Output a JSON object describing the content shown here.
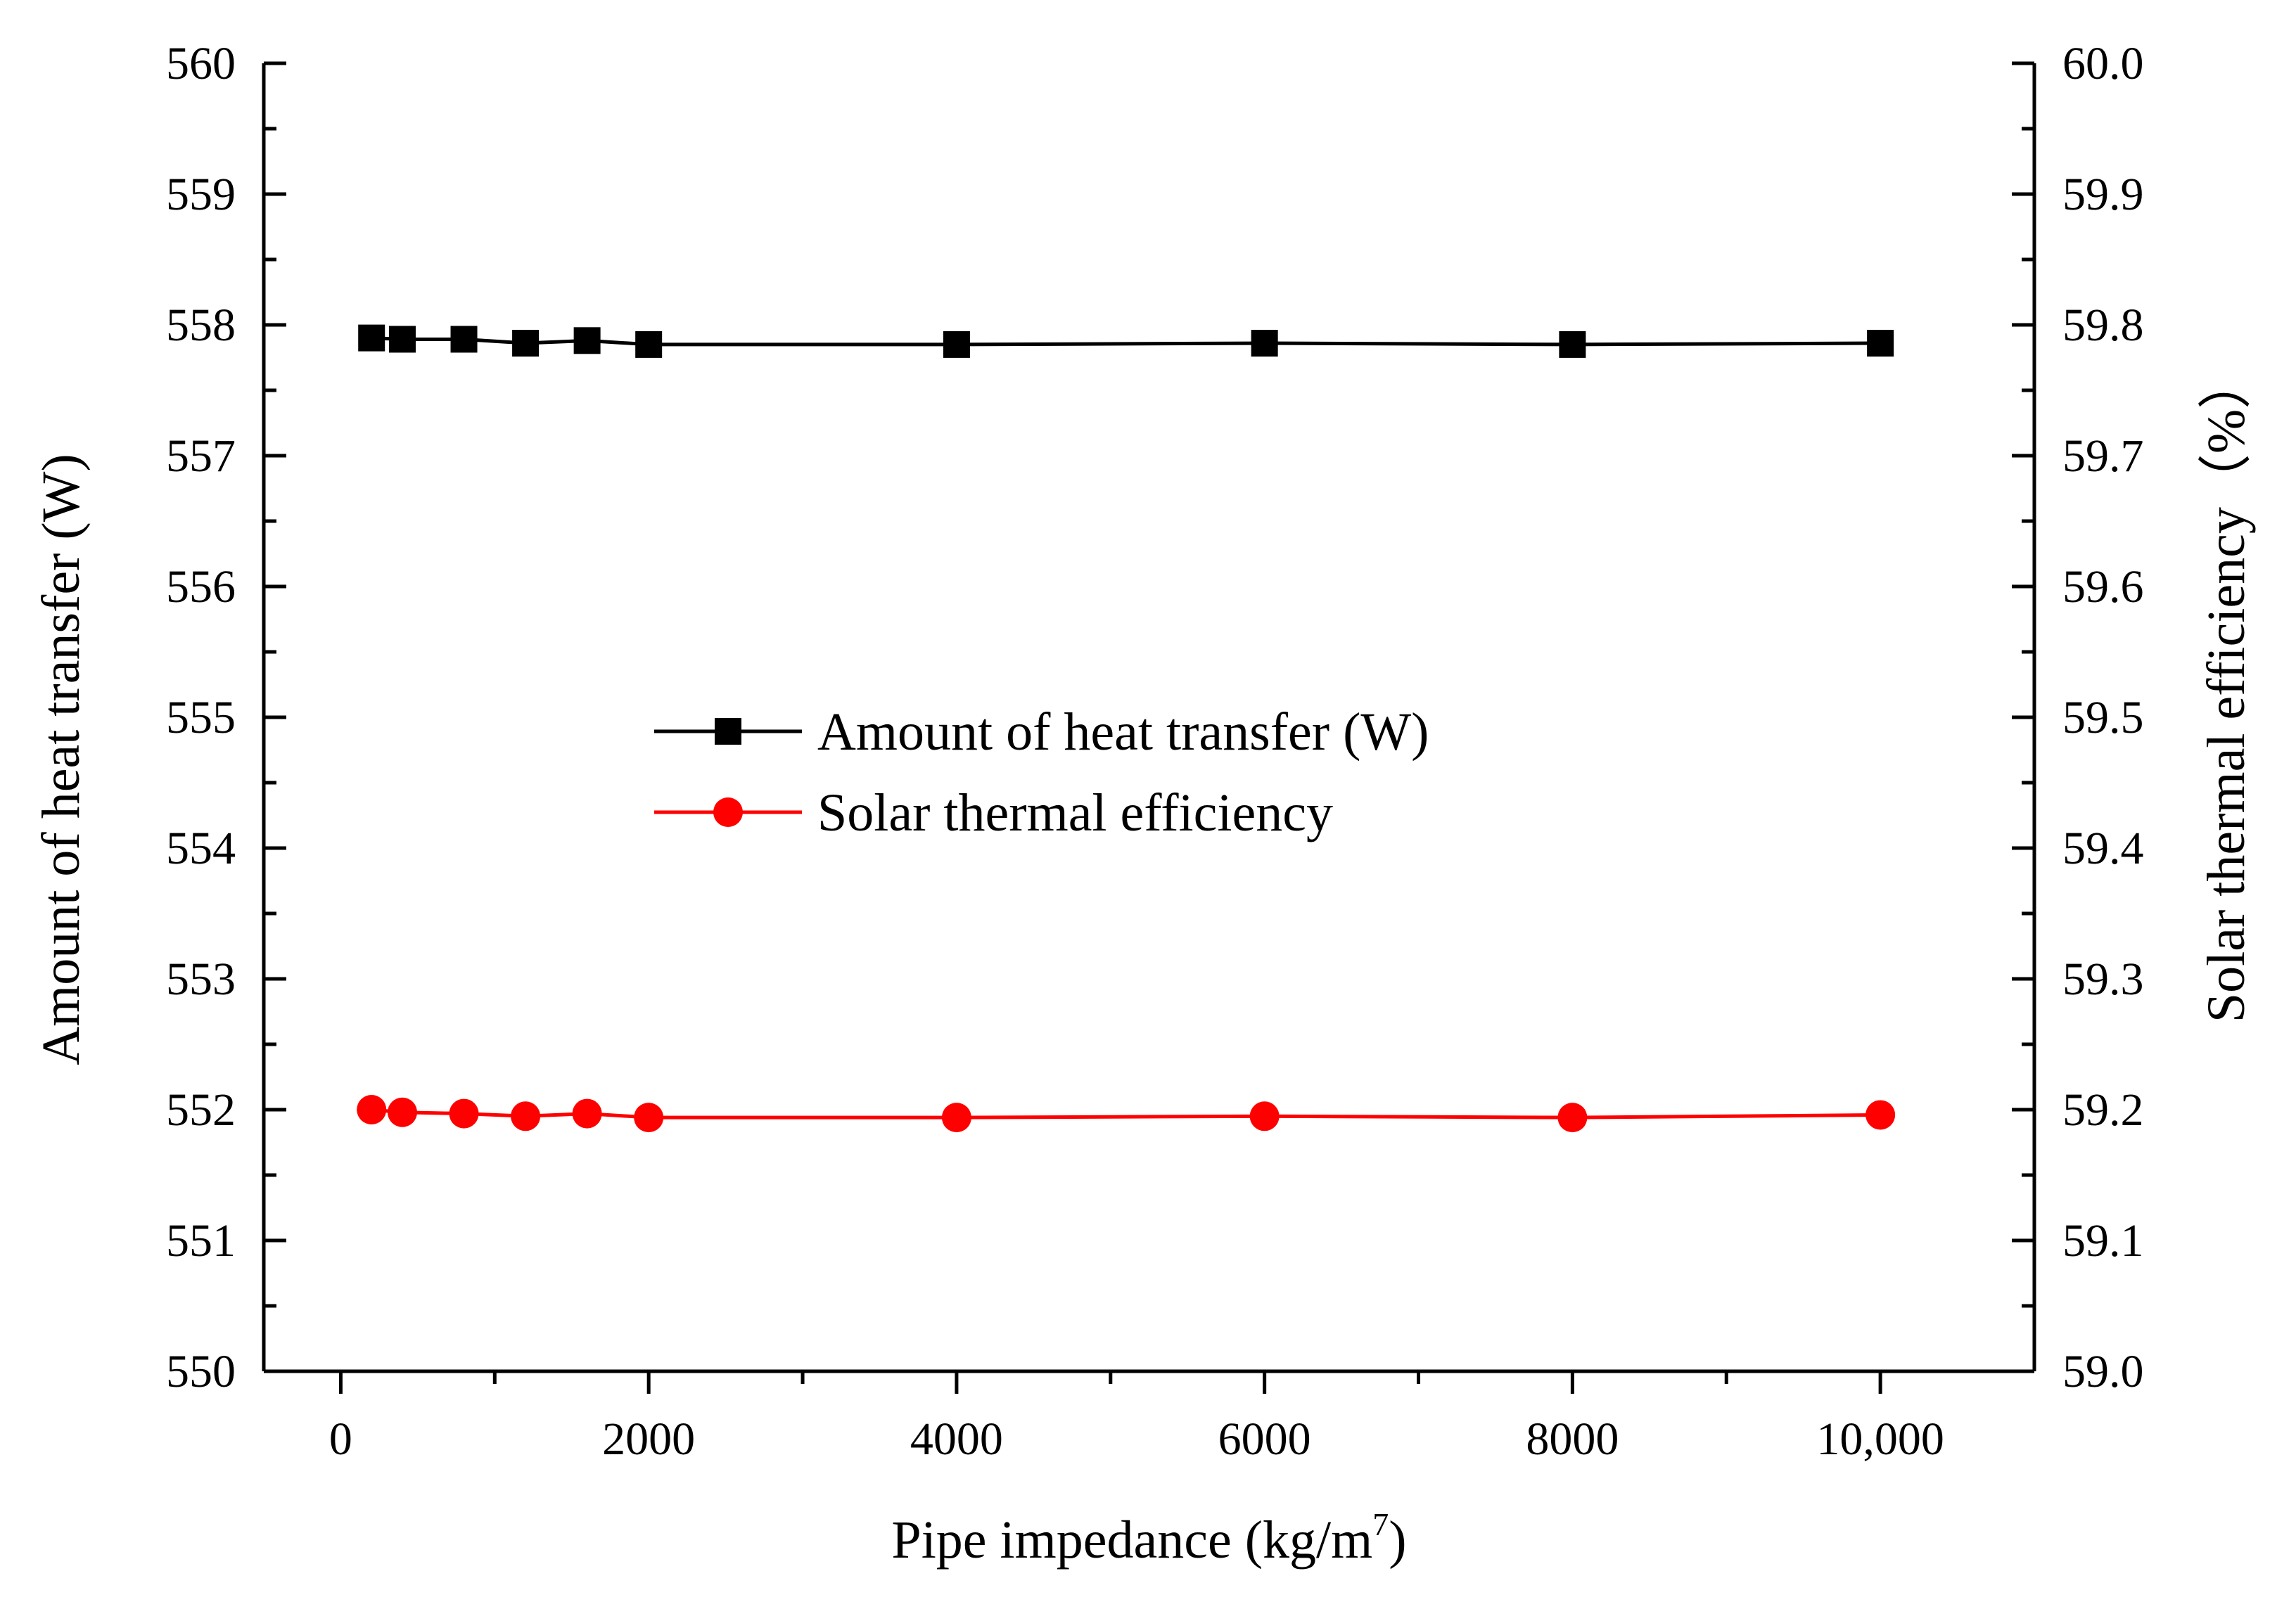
{
  "colors": {
    "heat": "#000000",
    "efficiency": "#ff0000",
    "axis": "#000000"
  },
  "chart_data": {
    "type": "line",
    "dual_axis": true,
    "title": "",
    "xlabel": "Pipe impedance (kg/m",
    "xlabel_sup": "7",
    "xlabel_end": ")",
    "ylabel_left": "Amount of heat transfer (W)",
    "ylabel_right": "Solar thermal efficiency（%）",
    "xlim": [
      -500,
      11000
    ],
    "ylim_left": [
      550,
      560
    ],
    "ylim_right": [
      59.0,
      60.0
    ],
    "x_ticks": [
      0,
      2000,
      4000,
      6000,
      8000,
      10000
    ],
    "x_tick_labels": [
      "0",
      "2000",
      "4000",
      "6000",
      "8000",
      "10,000"
    ],
    "y_left_ticks": [
      550,
      551,
      552,
      553,
      554,
      555,
      556,
      557,
      558,
      559,
      560
    ],
    "y_left_tick_labels": [
      "550",
      "551",
      "552",
      "553",
      "554",
      "555",
      "556",
      "557",
      "558",
      "559",
      "560"
    ],
    "y_right_ticks": [
      59.0,
      59.1,
      59.2,
      59.3,
      59.4,
      59.5,
      59.6,
      59.7,
      59.8,
      59.9,
      60.0
    ],
    "y_right_tick_labels": [
      "59.0",
      "59.1",
      "59.2",
      "59.3",
      "59.4",
      "59.5",
      "59.6",
      "59.7",
      "59.8",
      "59.9",
      "60.0"
    ],
    "legend_position": "center",
    "series": [
      {
        "name": "Amount of heat transfer (W)",
        "axis": "left",
        "marker": "square",
        "color": "#000000",
        "x": [
          200,
          400,
          800,
          1200,
          1600,
          2000,
          4000,
          6000,
          8000,
          10000
        ],
        "y": [
          557.9,
          557.89,
          557.89,
          557.86,
          557.88,
          557.85,
          557.85,
          557.86,
          557.85,
          557.86
        ]
      },
      {
        "name": "Solar thermal efficiency",
        "axis": "right",
        "marker": "circle",
        "color": "#ff0000",
        "x": [
          200,
          400,
          800,
          1200,
          1600,
          2000,
          4000,
          6000,
          8000,
          10000
        ],
        "y": [
          59.2,
          59.198,
          59.197,
          59.195,
          59.197,
          59.194,
          59.194,
          59.195,
          59.194,
          59.196
        ]
      }
    ]
  }
}
